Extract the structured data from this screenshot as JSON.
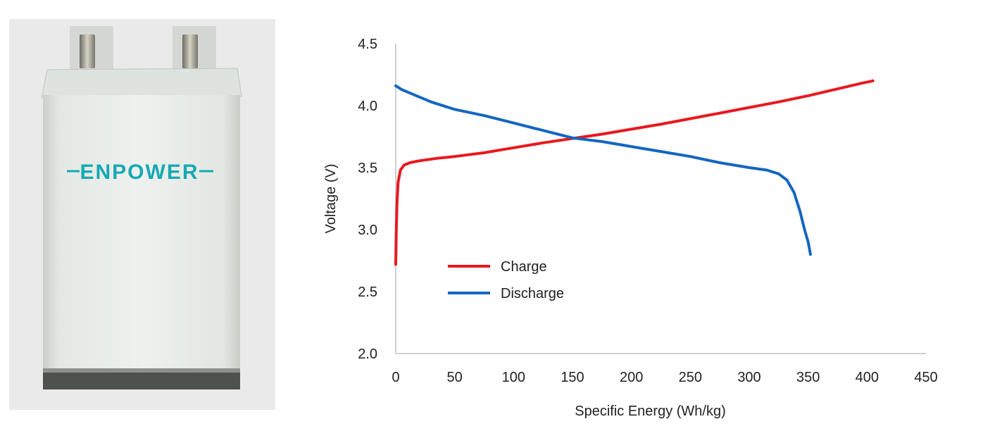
{
  "photo": {
    "brand_logo": "ENPOWER",
    "description_icon": "pouch-cell-icon"
  },
  "colors": {
    "charge": "#e8191f",
    "discharge": "#1466c0",
    "axis": "#bfbfbf",
    "logo": "#16a9b3"
  },
  "chart_data": {
    "type": "line",
    "title": "",
    "xlabel": "Specific Energy (Wh/kg)",
    "ylabel": "Voltage (V)",
    "xlim": [
      0,
      450
    ],
    "ylim": [
      2.0,
      4.5
    ],
    "xticks": [
      "0",
      "50",
      "100",
      "150",
      "200",
      "250",
      "300",
      "350",
      "400",
      "450"
    ],
    "yticks": [
      "2.0",
      "2.5",
      "3.0",
      "3.5",
      "4.0",
      "4.5"
    ],
    "grid": false,
    "legend_position": "lower-left",
    "series": [
      {
        "name": "Charge",
        "color": "#e8191f",
        "points": [
          [
            0,
            2.72
          ],
          [
            0.5,
            3.0
          ],
          [
            1,
            3.2
          ],
          [
            2,
            3.38
          ],
          [
            4,
            3.48
          ],
          [
            7,
            3.52
          ],
          [
            12,
            3.54
          ],
          [
            20,
            3.555
          ],
          [
            35,
            3.575
          ],
          [
            50,
            3.59
          ],
          [
            75,
            3.62
          ],
          [
            100,
            3.66
          ],
          [
            125,
            3.7
          ],
          [
            150,
            3.735
          ],
          [
            175,
            3.77
          ],
          [
            200,
            3.81
          ],
          [
            225,
            3.85
          ],
          [
            250,
            3.895
          ],
          [
            275,
            3.94
          ],
          [
            300,
            3.985
          ],
          [
            325,
            4.03
          ],
          [
            350,
            4.08
          ],
          [
            375,
            4.135
          ],
          [
            395,
            4.18
          ],
          [
            405,
            4.2
          ]
        ]
      },
      {
        "name": "Discharge",
        "color": "#1466c0",
        "points": [
          [
            0,
            4.16
          ],
          [
            5,
            4.13
          ],
          [
            15,
            4.09
          ],
          [
            30,
            4.03
          ],
          [
            50,
            3.97
          ],
          [
            75,
            3.92
          ],
          [
            100,
            3.86
          ],
          [
            125,
            3.8
          ],
          [
            150,
            3.74
          ],
          [
            175,
            3.71
          ],
          [
            200,
            3.67
          ],
          [
            225,
            3.63
          ],
          [
            250,
            3.59
          ],
          [
            275,
            3.54
          ],
          [
            300,
            3.5
          ],
          [
            315,
            3.48
          ],
          [
            325,
            3.45
          ],
          [
            332,
            3.4
          ],
          [
            338,
            3.3
          ],
          [
            343,
            3.15
          ],
          [
            347,
            3.0
          ],
          [
            350,
            2.9
          ],
          [
            352,
            2.8
          ]
        ]
      }
    ]
  }
}
